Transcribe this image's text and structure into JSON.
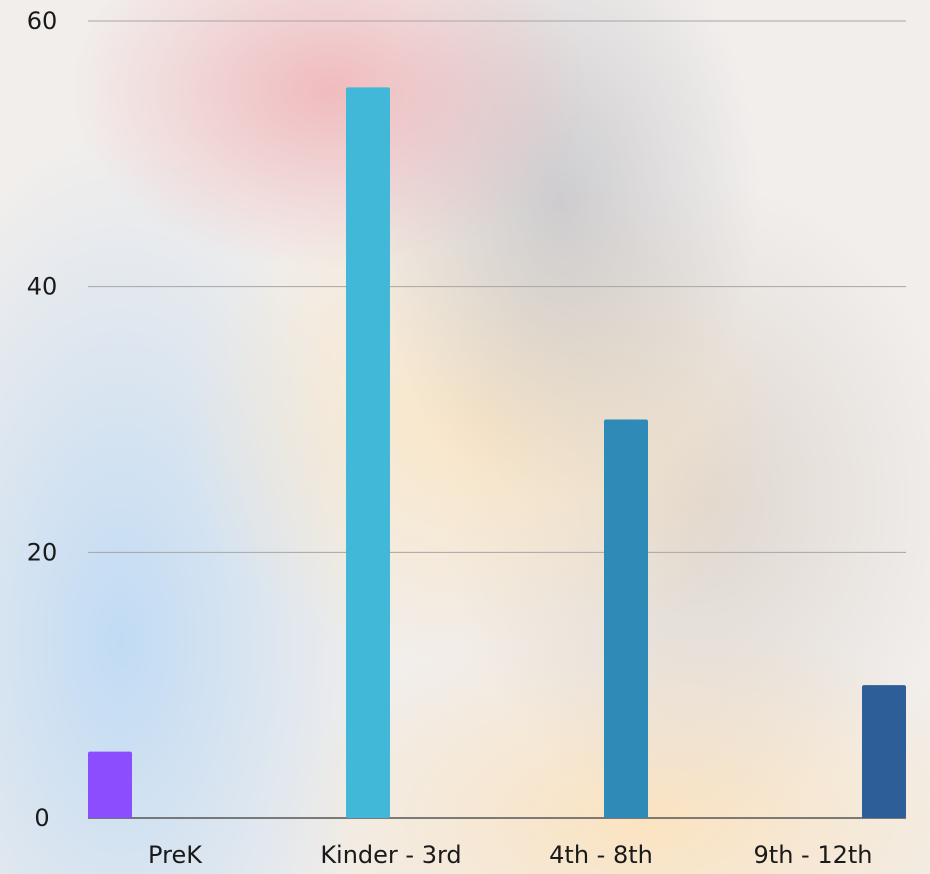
{
  "chart_data": {
    "type": "bar",
    "categories": [
      "PreK",
      "Kinder - 3rd",
      "4th - 8th",
      "9th - 12th"
    ],
    "values": [
      5,
      55,
      30,
      10
    ],
    "colors": [
      "#8c4dff",
      "#42b8d8",
      "#2e8bb8",
      "#2d5e97"
    ],
    "ylim": [
      0,
      60
    ],
    "yticks": [
      0,
      20,
      40,
      60
    ],
    "grid": true
  }
}
